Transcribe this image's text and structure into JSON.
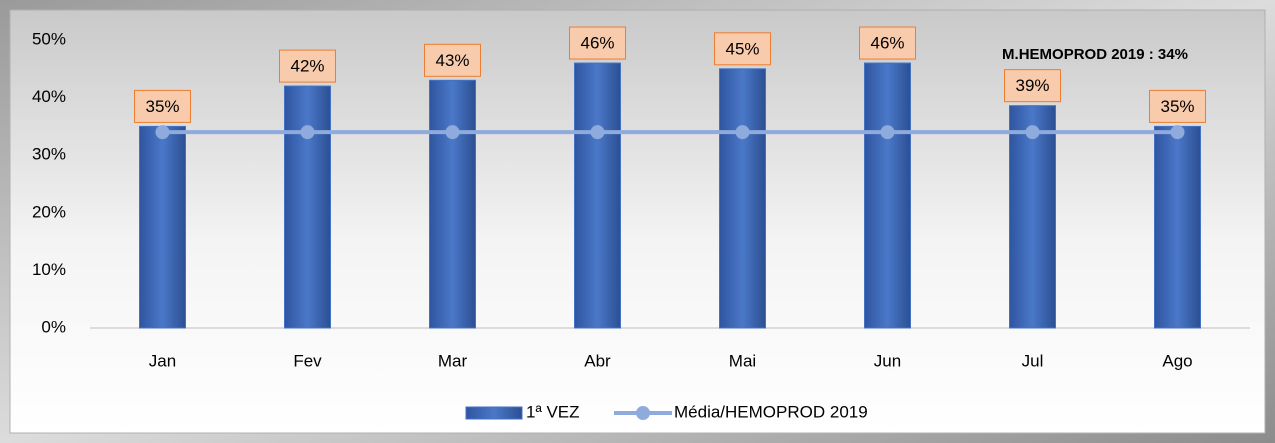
{
  "chart_data": {
    "type": "bar",
    "categories": [
      "Jan",
      "Fev",
      "Mar",
      "Abr",
      "Mai",
      "Jun",
      "Jul",
      "Ago"
    ],
    "series": [
      {
        "name": "1ª VEZ",
        "type": "bar",
        "color": "#4472c4",
        "values": [
          35,
          42,
          43,
          46,
          45,
          46,
          38.6,
          35
        ],
        "value_labels": [
          "35%",
          "42%",
          "43%",
          "46%",
          "45%",
          "46%",
          "39%",
          "35%"
        ]
      },
      {
        "name": "Média/HEMOPROD 2019",
        "type": "line",
        "color": "#8faadc",
        "values": [
          34,
          34,
          34,
          34,
          34,
          34,
          34,
          34
        ]
      }
    ],
    "ylim": [
      0,
      50
    ],
    "yticks": [
      {
        "value": 0,
        "label": "0%"
      },
      {
        "value": 10,
        "label": "10%"
      },
      {
        "value": 20,
        "label": "20%"
      },
      {
        "value": 30,
        "label": "30%"
      },
      {
        "value": 40,
        "label": "40%"
      },
      {
        "value": 50,
        "label": "50%"
      }
    ],
    "annotation": "M.HEMOPROD 2019 : 34%",
    "grid": false,
    "legend": "bottom"
  }
}
